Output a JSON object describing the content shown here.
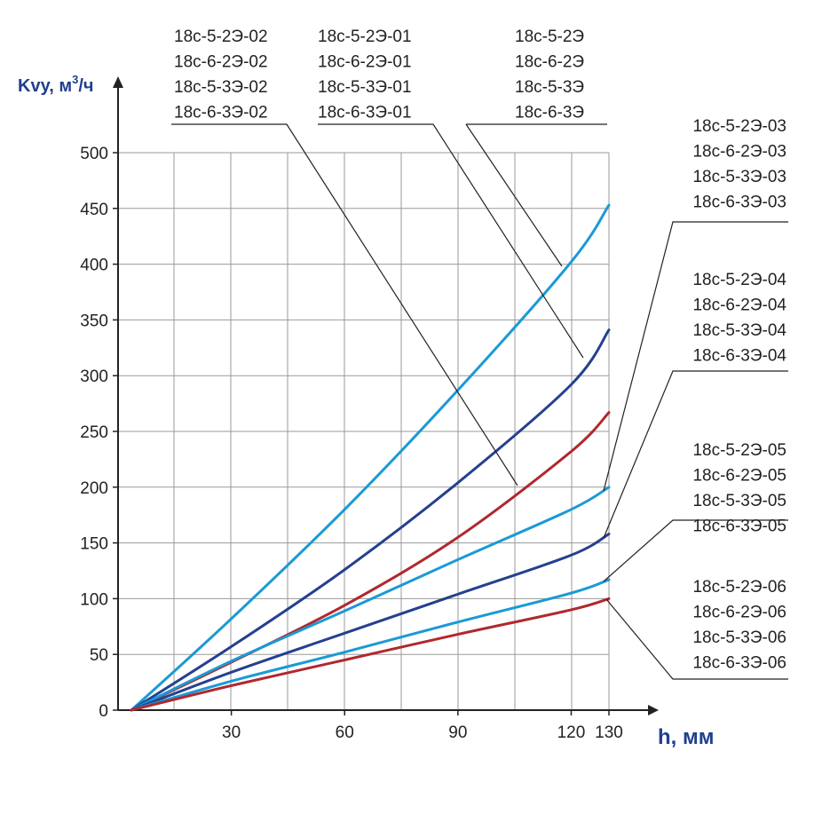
{
  "chart_data": {
    "type": "line",
    "title": "",
    "xlabel": "h, мм",
    "ylabel_main": "Kvy, м",
    "ylabel_sup": "3",
    "ylabel_tail": "/ч",
    "xlim": [
      0,
      130
    ],
    "ylim": [
      0,
      500
    ],
    "x_ticks": [
      30,
      60,
      90,
      120,
      130
    ],
    "y_ticks": [
      0,
      50,
      100,
      150,
      200,
      250,
      300,
      350,
      400,
      450,
      500
    ],
    "grid": true,
    "colors": {
      "light_blue": "#1a9ad6",
      "dark_blue": "#25408f",
      "red": "#b0282e",
      "grid": "#9a9a9a",
      "axis": "#222222"
    },
    "series": [
      {
        "name": "18с-5-2Э / 18с-6-2Э / 18с-5-3Э / 18с-6-3Э",
        "color_key": "light_blue",
        "x": [
          0,
          30,
          60,
          90,
          120,
          130
        ],
        "y": [
          0,
          82,
          180,
          287,
          402,
          453
        ]
      },
      {
        "name": "18с-...-01",
        "color_key": "dark_blue",
        "x": [
          0,
          30,
          60,
          90,
          120,
          130
        ],
        "y": [
          0,
          57,
          126,
          204,
          292,
          341
        ]
      },
      {
        "name": "18с-...-02",
        "color_key": "red",
        "x": [
          0,
          30,
          60,
          90,
          120,
          130
        ],
        "y": [
          0,
          43,
          94,
          155,
          232,
          267
        ]
      },
      {
        "name": "18с-...-03",
        "color_key": "light_blue",
        "x": [
          0,
          30,
          60,
          90,
          120,
          130
        ],
        "y": [
          0,
          44,
          89,
          135,
          180,
          200
        ]
      },
      {
        "name": "18с-...-04",
        "color_key": "dark_blue",
        "x": [
          0,
          30,
          60,
          90,
          120,
          130
        ],
        "y": [
          0,
          34,
          69,
          104,
          139,
          158
        ]
      },
      {
        "name": "18с-...-05",
        "color_key": "light_blue",
        "x": [
          0,
          30,
          60,
          90,
          120,
          130
        ],
        "y": [
          0,
          26,
          52,
          79,
          105,
          117
        ]
      },
      {
        "name": "18с-...-06",
        "color_key": "red",
        "x": [
          0,
          30,
          60,
          90,
          120,
          130
        ],
        "y": [
          0,
          22,
          45,
          68,
          90,
          100
        ]
      }
    ],
    "label_groups": [
      {
        "id": "base",
        "lines": [
          "18с-5-2Э",
          "18с-6-2Э",
          "18с-5-3Э",
          "18с-6-3Э"
        ]
      },
      {
        "id": "g01",
        "lines": [
          "18с-5-2Э-01",
          "18с-6-2Э-01",
          "18с-5-3Э-01",
          "18с-6-3Э-01"
        ]
      },
      {
        "id": "g02",
        "lines": [
          "18с-5-2Э-02",
          "18с-6-2Э-02",
          "18с-5-3Э-02",
          "18с-6-3Э-02"
        ]
      },
      {
        "id": "g03",
        "lines": [
          "18с-5-2Э-03",
          "18с-6-2Э-03",
          "18с-5-3Э-03",
          "18с-6-3Э-03"
        ]
      },
      {
        "id": "g04",
        "lines": [
          "18с-5-2Э-04",
          "18с-6-2Э-04",
          "18с-5-3Э-04",
          "18с-6-3Э-04"
        ]
      },
      {
        "id": "g05",
        "lines": [
          "18с-5-2Э-05",
          "18с-6-2Э-05",
          "18с-5-3Э-05",
          "18с-6-3Э-05"
        ]
      },
      {
        "id": "g06",
        "lines": [
          "18с-5-2Э-06",
          "18с-6-2Э-06",
          "18с-5-3Э-06",
          "18с-6-3Э-06"
        ]
      }
    ]
  }
}
